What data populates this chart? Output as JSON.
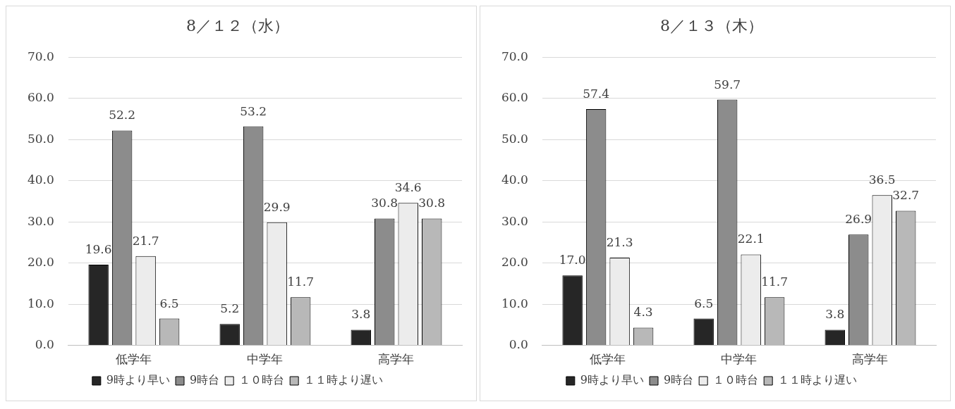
{
  "chart_data": [
    {
      "type": "bar",
      "title": "8／１２（水）",
      "categories": [
        "低学年",
        "中学年",
        "高学年"
      ],
      "series": [
        {
          "name": "9時より早い",
          "color": "#262626",
          "values": [
            19.6,
            5.2,
            3.8
          ],
          "value_labels": [
            "19.6",
            "5.2",
            "3.8"
          ]
        },
        {
          "name": "9時台",
          "color": "#8c8c8c",
          "values": [
            52.2,
            53.2,
            30.8
          ],
          "value_labels": [
            "52.2",
            "53.2",
            "30.8"
          ]
        },
        {
          "name": "１０時台",
          "color": "#ececec",
          "values": [
            21.7,
            29.9,
            34.6
          ],
          "value_labels": [
            "21.7",
            "29.9",
            "34.6"
          ]
        },
        {
          "name": "１１時より遅い",
          "color": "#b8b8b8",
          "values": [
            6.5,
            11.7,
            30.8
          ],
          "value_labels": [
            "6.5",
            "11.7",
            "30.8"
          ]
        }
      ],
      "ylim": [
        0,
        70
      ],
      "yticks": [
        {
          "value": 0,
          "label": "0.0"
        },
        {
          "value": 10,
          "label": "10.0"
        },
        {
          "value": 20,
          "label": "20.0"
        },
        {
          "value": 30,
          "label": "30.0"
        },
        {
          "value": 40,
          "label": "40.0"
        },
        {
          "value": 50,
          "label": "50.0"
        },
        {
          "value": 60,
          "label": "60.0"
        },
        {
          "value": 70,
          "label": "70.0"
        }
      ],
      "grid": "y",
      "legend": "bottom"
    },
    {
      "type": "bar",
      "title": "8／１３（木）",
      "categories": [
        "低学年",
        "中学年",
        "高学年"
      ],
      "series": [
        {
          "name": "9時より早い",
          "color": "#262626",
          "values": [
            17.0,
            6.5,
            3.8
          ],
          "value_labels": [
            "17.0",
            "6.5",
            "3.8"
          ]
        },
        {
          "name": "9時台",
          "color": "#8c8c8c",
          "values": [
            57.4,
            59.7,
            26.9
          ],
          "value_labels": [
            "57.4",
            "59.7",
            "26.9"
          ]
        },
        {
          "name": "１０時台",
          "color": "#ececec",
          "values": [
            21.3,
            22.1,
            36.5
          ],
          "value_labels": [
            "21.3",
            "22.1",
            "36.5"
          ]
        },
        {
          "name": "１１時より遅い",
          "color": "#b8b8b8",
          "values": [
            4.3,
            11.7,
            32.7
          ],
          "value_labels": [
            "4.3",
            "11.7",
            "32.7"
          ]
        }
      ],
      "ylim": [
        0,
        70
      ],
      "yticks": [
        {
          "value": 0,
          "label": "0.0"
        },
        {
          "value": 10,
          "label": "10.0"
        },
        {
          "value": 20,
          "label": "20.0"
        },
        {
          "value": 30,
          "label": "30.0"
        },
        {
          "value": 40,
          "label": "40.0"
        },
        {
          "value": 50,
          "label": "50.0"
        },
        {
          "value": 60,
          "label": "60.0"
        },
        {
          "value": 70,
          "label": "70.0"
        }
      ],
      "grid": "y",
      "legend": "bottom"
    }
  ]
}
